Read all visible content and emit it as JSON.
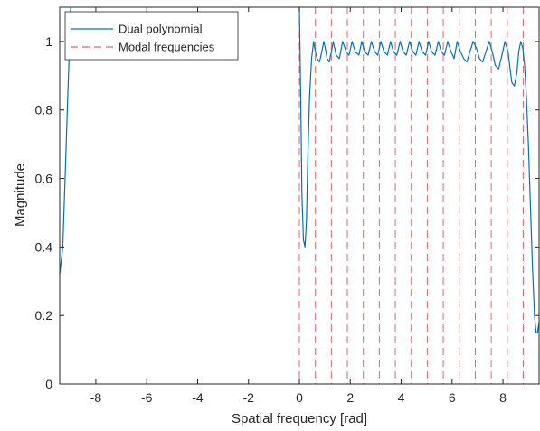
{
  "chart_data": {
    "type": "line",
    "title": "",
    "xlabel": "Spatial frequency [rad]",
    "ylabel": "Magnitude",
    "xlim": [
      -9.42,
      9.42
    ],
    "ylim": [
      0,
      1.1
    ],
    "xticks": [
      -8,
      -6,
      -4,
      -2,
      0,
      2,
      4,
      6,
      8
    ],
    "xtick_labels": [
      "-8",
      "-6",
      "-4",
      "-2",
      "0",
      "2",
      "4",
      "6",
      "8"
    ],
    "yticks": [
      0,
      0.2,
      0.4,
      0.6,
      0.8,
      1
    ],
    "ytick_labels": [
      "0",
      "0.2",
      "0.4",
      "0.6",
      "0.8",
      "1"
    ],
    "grid": false,
    "legend_position": "top-left",
    "series": [
      {
        "name": "Dual polynomial",
        "style": "solid",
        "color": "#0072BD",
        "x": [
          -9.42,
          -9.3,
          -9.2,
          -9.1,
          -9.02,
          -8.99,
          0.0,
          0.05,
          0.1,
          0.16,
          0.22,
          0.28,
          0.33,
          0.4,
          0.48,
          0.56,
          0.63,
          0.7,
          0.79,
          0.88,
          0.96,
          1.02,
          1.09,
          1.17,
          1.26,
          1.33,
          1.45,
          1.57,
          1.7,
          1.84,
          1.95,
          2.07,
          2.2,
          2.34,
          2.45,
          2.57,
          2.7,
          2.83,
          2.96,
          3.08,
          3.2,
          3.33,
          3.46,
          3.58,
          3.7,
          3.83,
          3.96,
          4.08,
          4.2,
          4.33,
          4.46,
          4.58,
          4.7,
          4.83,
          4.96,
          5.08,
          5.2,
          5.33,
          5.46,
          5.58,
          5.7,
          5.83,
          5.96,
          6.08,
          6.2,
          6.33,
          6.46,
          6.58,
          6.7,
          6.83,
          6.96,
          7.08,
          7.2,
          7.33,
          7.46,
          7.58,
          7.7,
          7.83,
          7.96,
          8.08,
          8.2,
          8.28,
          8.35,
          8.45,
          8.55,
          8.62,
          8.7,
          8.78,
          8.85,
          8.92,
          9.0,
          9.08,
          9.16,
          9.24,
          9.3,
          9.36,
          9.42
        ],
        "y": [
          0.32,
          0.4,
          0.62,
          0.85,
          1.02,
          1.1,
          1.1,
          0.85,
          0.55,
          0.42,
          0.4,
          0.48,
          0.66,
          0.84,
          0.95,
          1.0,
          0.97,
          0.95,
          0.94,
          0.97,
          1.0,
          0.98,
          0.95,
          0.94,
          0.97,
          1.0,
          0.96,
          0.95,
          1.0,
          0.97,
          0.96,
          1.0,
          0.97,
          0.96,
          1.0,
          0.97,
          0.96,
          1.0,
          0.97,
          0.96,
          1.0,
          0.97,
          0.96,
          1.0,
          0.97,
          0.96,
          1.0,
          0.97,
          0.96,
          1.0,
          0.97,
          0.96,
          1.0,
          0.97,
          0.96,
          1.0,
          0.97,
          0.96,
          1.0,
          0.97,
          0.96,
          1.0,
          0.97,
          0.95,
          1.0,
          0.97,
          0.95,
          0.94,
          0.97,
          1.0,
          0.98,
          0.95,
          0.94,
          0.97,
          1.0,
          0.97,
          0.93,
          0.92,
          0.96,
          1.0,
          0.97,
          0.92,
          0.88,
          0.87,
          0.91,
          0.97,
          1.0,
          0.98,
          0.93,
          0.84,
          0.7,
          0.52,
          0.34,
          0.2,
          0.15,
          0.15,
          0.18
        ]
      },
      {
        "name": "Modal frequencies",
        "style": "dashed",
        "color": "#E8636B",
        "x": [
          0,
          0.628,
          1.257,
          1.885,
          2.513,
          3.142,
          3.77,
          4.398,
          5.027,
          5.655,
          6.283,
          6.912,
          7.54,
          8.168,
          8.796
        ]
      }
    ]
  }
}
